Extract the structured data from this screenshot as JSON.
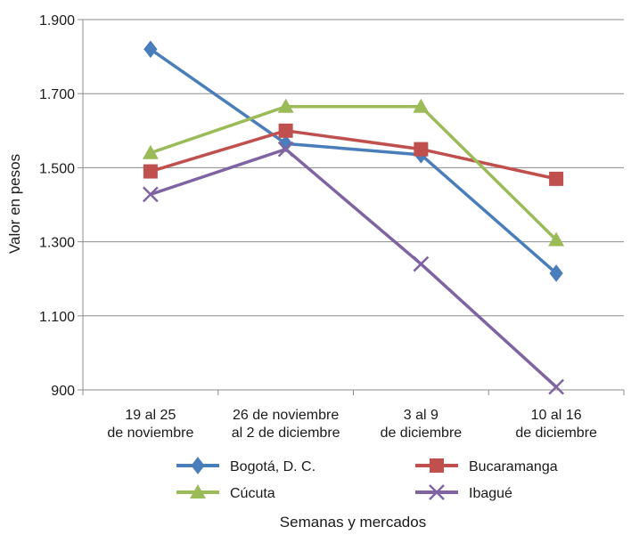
{
  "chart_data": {
    "type": "line",
    "title": "",
    "xlabel": "Semanas y mercados",
    "ylabel": "Valor en pesos",
    "categories": [
      [
        "19 al 25",
        "de noviembre"
      ],
      [
        "26 de noviembre",
        "al 2 de diciembre"
      ],
      [
        "3 al 9",
        "de diciembre"
      ],
      [
        "10 al 16",
        "de diciembre"
      ]
    ],
    "y_ticks": [
      900,
      1100,
      1300,
      1500,
      1700,
      1900
    ],
    "y_tick_labels": [
      "900",
      "1.100",
      "1.300",
      "1.500",
      "1.700",
      "1.900"
    ],
    "ylim": [
      900,
      1900
    ],
    "grid": true,
    "legend_position": "bottom",
    "series": [
      {
        "name": "Bogotá, D. C.",
        "color": "#4a7ebb",
        "marker": "diamond",
        "values": [
          1820,
          1565,
          1535,
          1215
        ]
      },
      {
        "name": "Bucaramanga",
        "color": "#c0504d",
        "marker": "square",
        "values": [
          1490,
          1600,
          1550,
          1470
        ]
      },
      {
        "name": "Cúcuta",
        "color": "#9bbb59",
        "marker": "triangle",
        "values": [
          1540,
          1665,
          1665,
          1305
        ]
      },
      {
        "name": "Ibagué",
        "color": "#8064a2",
        "marker": "x",
        "values": [
          1428,
          1550,
          1240,
          908
        ]
      }
    ]
  }
}
